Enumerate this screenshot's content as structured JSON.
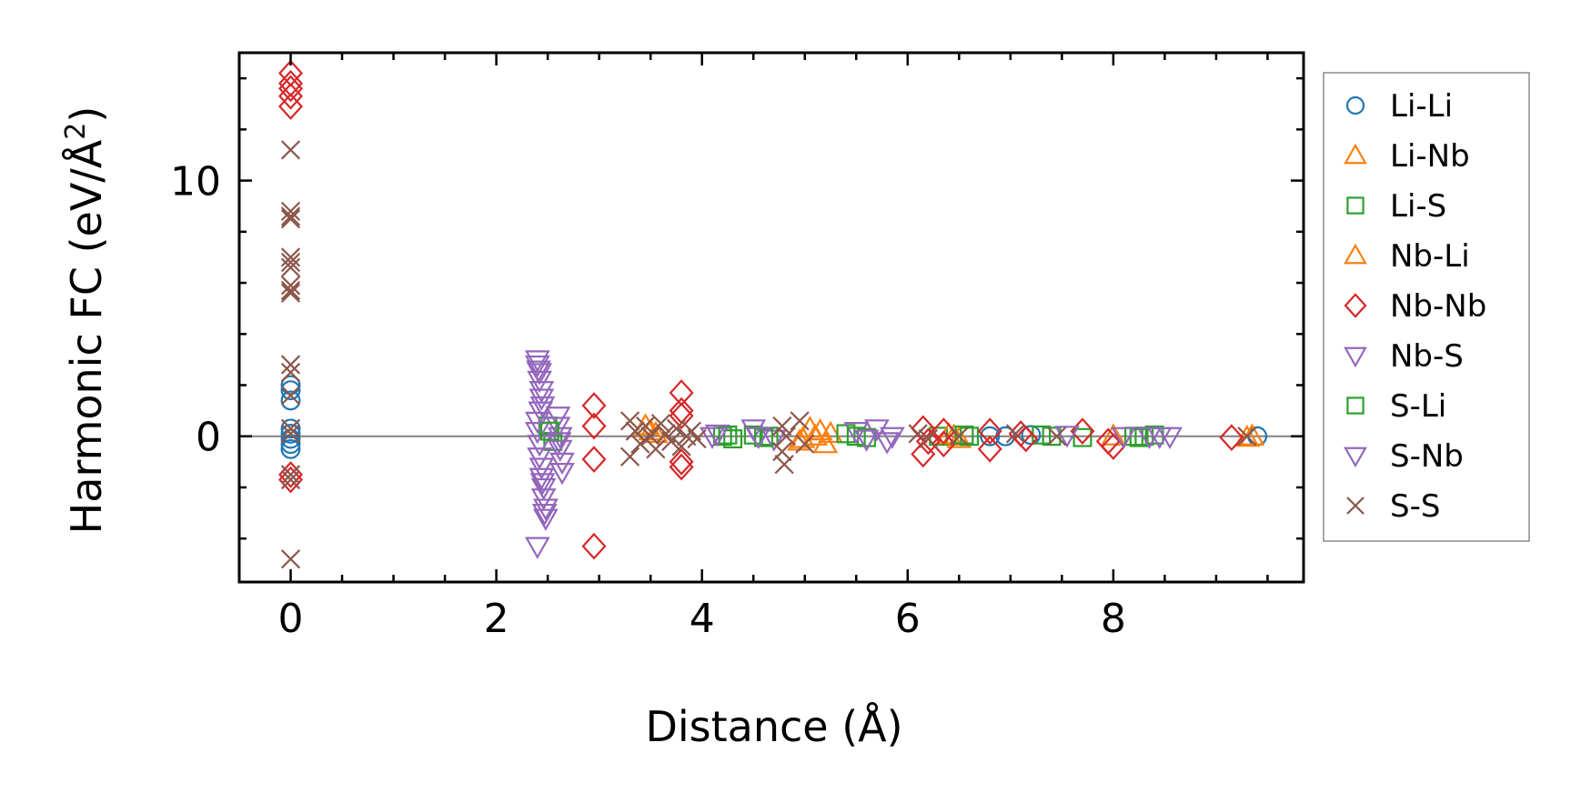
{
  "chart_data": {
    "type": "scatter",
    "title": "",
    "xlabel": "Distance (Å)",
    "ylabel": "Harmonic FC (eV/Å²)",
    "ylabel_base": "Harmonic FC (eV/Å",
    "ylabel_sup": "2",
    "ylabel_close": ")",
    "xlim": [
      -0.5,
      9.85
    ],
    "ylim": [
      -5.7,
      15.0
    ],
    "x_major_ticks": [
      0,
      2,
      4,
      6,
      8
    ],
    "x_tick_labels": [
      "0",
      "2",
      "4",
      "6",
      "8"
    ],
    "x_minor_ticks": [
      -0.5,
      0.5,
      1,
      1.5,
      2.5,
      3,
      3.5,
      4.5,
      5,
      5.5,
      6.5,
      7,
      7.5,
      8.5,
      9,
      9.5
    ],
    "y_major_ticks": [
      0,
      10
    ],
    "y_tick_labels": [
      "0",
      "10"
    ],
    "y_minor_ticks": [
      -4,
      -2,
      2,
      4,
      6,
      8,
      12,
      14
    ],
    "zero_line": 0,
    "grid": false,
    "legend_position": "right-outside",
    "series": [
      {
        "name": "Li-Li",
        "marker": "circle",
        "color": "#1f77b4",
        "points": [
          [
            0,
            2.0
          ],
          [
            0,
            1.8
          ],
          [
            0,
            1.4
          ],
          [
            0,
            0.3
          ],
          [
            0,
            0.1
          ],
          [
            0,
            -0.1
          ],
          [
            0,
            -0.3
          ],
          [
            0,
            -0.5
          ],
          [
            6.8,
            0.0
          ],
          [
            6.95,
            0.0
          ],
          [
            7.2,
            0.05
          ],
          [
            9.4,
            0.0
          ]
        ]
      },
      {
        "name": "Li-Nb",
        "marker": "triangle-up",
        "color": "#ff7f0e",
        "points": [
          [
            3.45,
            0.4
          ],
          [
            3.55,
            0.1
          ],
          [
            4.95,
            -0.2
          ],
          [
            5.05,
            0.3
          ],
          [
            5.1,
            0.0
          ],
          [
            5.2,
            -0.3
          ],
          [
            5.25,
            0.1
          ],
          [
            6.45,
            0.0
          ],
          [
            6.5,
            -0.1
          ],
          [
            8.0,
            0.0
          ],
          [
            9.3,
            -0.05
          ]
        ]
      },
      {
        "name": "Li-S",
        "marker": "square",
        "color": "#2ca02c",
        "points": [
          [
            2.5,
            0.4
          ],
          [
            2.55,
            -0.2
          ],
          [
            4.2,
            0.0
          ],
          [
            4.3,
            -0.1
          ],
          [
            4.5,
            0.05
          ],
          [
            4.65,
            0.0
          ],
          [
            5.4,
            0.1
          ],
          [
            5.6,
            -0.05
          ],
          [
            6.3,
            0.0
          ],
          [
            6.6,
            0.0
          ],
          [
            7.3,
            0.05
          ],
          [
            7.7,
            -0.05
          ],
          [
            8.2,
            0.0
          ],
          [
            8.3,
            0.0
          ],
          [
            8.4,
            0.05
          ]
        ]
      },
      {
        "name": "Nb-Li",
        "marker": "triangle-up",
        "color": "#ff7f0e",
        "points": [
          [
            3.5,
            0.2
          ],
          [
            4.98,
            -0.1
          ],
          [
            5.15,
            0.2
          ],
          [
            6.4,
            0.05
          ],
          [
            9.35,
            0.0
          ]
        ]
      },
      {
        "name": "Nb-Nb",
        "marker": "diamond",
        "color": "#d62728",
        "points": [
          [
            0,
            14.2
          ],
          [
            0,
            13.8
          ],
          [
            0,
            13.6
          ],
          [
            0,
            13.3
          ],
          [
            0,
            12.9
          ],
          [
            0,
            -1.5
          ],
          [
            0,
            -1.7
          ],
          [
            2.95,
            1.2
          ],
          [
            2.95,
            0.4
          ],
          [
            2.95,
            -0.9
          ],
          [
            2.95,
            -4.3
          ],
          [
            3.8,
            1.7
          ],
          [
            3.8,
            1.0
          ],
          [
            3.8,
            0.8
          ],
          [
            3.8,
            -1.0
          ],
          [
            3.8,
            -1.2
          ],
          [
            6.15,
            0.3
          ],
          [
            6.15,
            -0.7
          ],
          [
            6.2,
            -0.2
          ],
          [
            6.35,
            0.2
          ],
          [
            6.35,
            -0.3
          ],
          [
            6.8,
            0.2
          ],
          [
            6.8,
            -0.5
          ],
          [
            7.1,
            0.1
          ],
          [
            7.15,
            -0.1
          ],
          [
            7.7,
            0.2
          ],
          [
            7.95,
            -0.2
          ],
          [
            8.0,
            -0.4
          ],
          [
            9.15,
            -0.05
          ]
        ]
      },
      {
        "name": "Nb-S",
        "marker": "triangle-down",
        "color": "#9467bd",
        "points": [
          [
            2.4,
            3.0
          ],
          [
            2.4,
            2.8
          ],
          [
            2.42,
            2.5
          ],
          [
            2.42,
            2.2
          ],
          [
            2.44,
            1.8
          ],
          [
            2.44,
            1.5
          ],
          [
            2.45,
            1.2
          ],
          [
            2.4,
            0.6
          ],
          [
            2.4,
            0.2
          ],
          [
            2.42,
            -0.3
          ],
          [
            2.42,
            -0.8
          ],
          [
            2.44,
            -1.2
          ],
          [
            2.44,
            -1.6
          ],
          [
            2.46,
            -2.0
          ],
          [
            2.46,
            -2.4
          ],
          [
            2.48,
            -2.8
          ],
          [
            2.48,
            -3.2
          ],
          [
            2.4,
            -4.3
          ],
          [
            2.6,
            0.8
          ],
          [
            2.6,
            0.4
          ],
          [
            2.62,
            0.0
          ],
          [
            2.62,
            -0.5
          ],
          [
            2.64,
            -1.0
          ],
          [
            2.64,
            -1.4
          ],
          [
            4.1,
            0.0
          ],
          [
            4.5,
            0.3
          ],
          [
            4.7,
            -0.1
          ],
          [
            5.5,
            0.2
          ],
          [
            5.7,
            0.3
          ],
          [
            5.8,
            -0.2
          ],
          [
            5.85,
            0.0
          ]
        ]
      },
      {
        "name": "S-Li",
        "marker": "square",
        "color": "#2ca02c",
        "points": [
          [
            2.52,
            0.2
          ],
          [
            4.25,
            0.05
          ],
          [
            4.6,
            -0.05
          ],
          [
            5.5,
            0.0
          ],
          [
            6.55,
            0.05
          ],
          [
            7.4,
            0.0
          ],
          [
            8.25,
            -0.05
          ]
        ]
      },
      {
        "name": "S-Nb",
        "marker": "triangle-down",
        "color": "#9467bd",
        "points": [
          [
            2.41,
            2.6
          ],
          [
            2.43,
            1.0
          ],
          [
            2.45,
            -1.8
          ],
          [
            2.47,
            -3.0
          ],
          [
            2.61,
            -0.2
          ],
          [
            4.15,
            0.1
          ],
          [
            4.55,
            0.0
          ],
          [
            5.6,
            -0.1
          ],
          [
            7.55,
            0.05
          ],
          [
            8.1,
            0.0
          ],
          [
            8.35,
            0.0
          ],
          [
            8.45,
            0.0
          ],
          [
            8.55,
            0.0
          ]
        ]
      },
      {
        "name": "S-S",
        "marker": "x",
        "color": "#8c564b",
        "points": [
          [
            0,
            11.2
          ],
          [
            0,
            8.8
          ],
          [
            0,
            8.6
          ],
          [
            0,
            8.5
          ],
          [
            0,
            7.0
          ],
          [
            0,
            6.8
          ],
          [
            0,
            6.6
          ],
          [
            0,
            5.9
          ],
          [
            0,
            5.7
          ],
          [
            0,
            5.6
          ],
          [
            0,
            2.8
          ],
          [
            0,
            2.5
          ],
          [
            0,
            1.6
          ],
          [
            0,
            0.3
          ],
          [
            0,
            0.1
          ],
          [
            0,
            -1.5
          ],
          [
            0,
            -1.7
          ],
          [
            0,
            -4.8
          ],
          [
            3.3,
            0.6
          ],
          [
            3.3,
            -0.8
          ],
          [
            3.35,
            0.2
          ],
          [
            3.4,
            -0.3
          ],
          [
            3.45,
            0.4
          ],
          [
            3.5,
            0.0
          ],
          [
            3.55,
            -0.5
          ],
          [
            3.6,
            0.5
          ],
          [
            3.65,
            0.1
          ],
          [
            3.7,
            -0.2
          ],
          [
            3.75,
            0.3
          ],
          [
            3.8,
            -0.4
          ],
          [
            3.85,
            0.0
          ],
          [
            3.9,
            0.2
          ],
          [
            3.95,
            -0.1
          ],
          [
            4.78,
            0.4
          ],
          [
            4.78,
            -0.6
          ],
          [
            4.8,
            -1.1
          ],
          [
            4.82,
            0.0
          ],
          [
            4.95,
            0.6
          ],
          [
            5.0,
            -0.3
          ],
          [
            6.1,
            0.1
          ],
          [
            6.2,
            -0.1
          ],
          [
            6.5,
            0.0
          ],
          [
            7.05,
            0.1
          ],
          [
            7.45,
            0.0
          ],
          [
            9.3,
            0.0
          ]
        ]
      }
    ]
  }
}
